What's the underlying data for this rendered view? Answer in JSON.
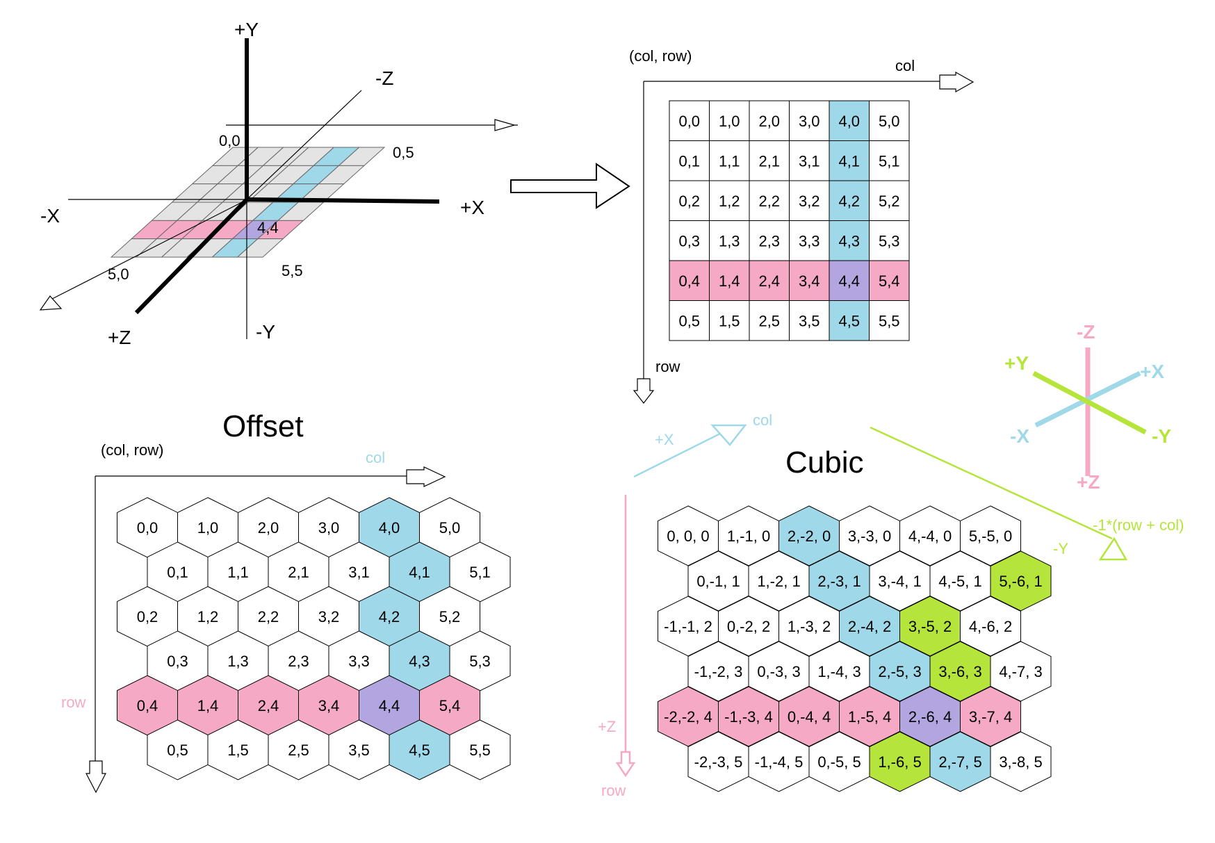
{
  "colors": {
    "blue": "#9fd8e8",
    "pink": "#f5a9c4",
    "purple": "#b3a6e0",
    "green": "#b5e53a",
    "gray": "#e4e4e4",
    "lightblue_line": "#9fd8e8",
    "pink_line": "#f5a9c4",
    "green_line": "#b5e53a"
  },
  "axes3d": {
    "plus_y": "+Y",
    "minus_y": "-Y",
    "plus_x": "+X",
    "minus_x": "-X",
    "plus_z": "+Z",
    "minus_z": "-Z",
    "corner_00": "0,0",
    "corner_05": "0,5",
    "corner_50": "5,0",
    "corner_55": "5,5",
    "center": "4,4"
  },
  "grid": {
    "header": "(col, row)",
    "col_label": "col",
    "row_label": "row",
    "highlight_col": 4,
    "highlight_row": 4,
    "cells": [
      [
        "0,0",
        "1,0",
        "2,0",
        "3,0",
        "4,0",
        "5,0"
      ],
      [
        "0,1",
        "1,1",
        "2,1",
        "3,1",
        "4,1",
        "5,1"
      ],
      [
        "0,2",
        "1,2",
        "2,2",
        "3,2",
        "4,2",
        "5,2"
      ],
      [
        "0,3",
        "1,3",
        "2,3",
        "3,3",
        "4,3",
        "5,3"
      ],
      [
        "0,4",
        "1,4",
        "2,4",
        "3,4",
        "4,4",
        "5,4"
      ],
      [
        "0,5",
        "1,5",
        "2,5",
        "3,5",
        "4,5",
        "5,5"
      ]
    ]
  },
  "offset": {
    "title": "Offset",
    "header": "(col, row)",
    "col_label": "col",
    "row_label": "row",
    "cells": [
      [
        "0,0",
        "1,0",
        "2,0",
        "3,0",
        "4,0",
        "5,0"
      ],
      [
        "0,1",
        "1,1",
        "2,1",
        "3,1",
        "4,1",
        "5,1"
      ],
      [
        "0,2",
        "1,2",
        "2,2",
        "3,2",
        "4,2",
        "5,2"
      ],
      [
        "0,3",
        "1,3",
        "2,3",
        "3,3",
        "4,3",
        "5,3"
      ],
      [
        "0,4",
        "1,4",
        "2,4",
        "3,4",
        "4,4",
        "5,4"
      ],
      [
        "0,5",
        "1,5",
        "2,5",
        "3,5",
        "4,5",
        "5,5"
      ]
    ],
    "fills": [
      [
        "w",
        "w",
        "w",
        "w",
        "b",
        "w"
      ],
      [
        "w",
        "w",
        "w",
        "w",
        "b",
        "w"
      ],
      [
        "w",
        "w",
        "w",
        "w",
        "b",
        "w"
      ],
      [
        "w",
        "w",
        "w",
        "w",
        "b",
        "w"
      ],
      [
        "p",
        "p",
        "p",
        "p",
        "u",
        "p"
      ],
      [
        "w",
        "w",
        "w",
        "w",
        "b",
        "w"
      ]
    ]
  },
  "cubic": {
    "title": "Cubic",
    "col_label": "col",
    "row_label": "row",
    "plus_x": "+X",
    "plus_z": "+Z",
    "minus_y": "-Y",
    "formula": "-1*(row + col)",
    "cells": [
      [
        "0, 0, 0",
        "1,-1, 0",
        "2,-2, 0",
        "3,-3, 0",
        "4,-4, 0",
        "5,-5, 0"
      ],
      [
        "0,-1, 1",
        "1,-2, 1",
        "2,-3, 1",
        "3,-4, 1",
        "4,-5, 1",
        "5,-6, 1"
      ],
      [
        "-1,-1, 2",
        "0,-2, 2",
        "1,-3, 2",
        "2,-4, 2",
        "3,-5, 2",
        "4,-6, 2"
      ],
      [
        "-1,-2, 3",
        "0,-3, 3",
        "1,-4, 3",
        "2,-5, 3",
        "3,-6, 3",
        "4,-7, 3"
      ],
      [
        "-2,-2, 4",
        "-1,-3, 4",
        "0,-4, 4",
        "1,-5, 4",
        "2,-6, 4",
        "3,-7, 4"
      ],
      [
        "-2,-3, 5",
        "-1,-4, 5",
        "0,-5, 5",
        "1,-6, 5",
        "2,-7, 5",
        "3,-8, 5"
      ]
    ],
    "fills": [
      [
        "w",
        "w",
        "b",
        "w",
        "w",
        "w"
      ],
      [
        "w",
        "w",
        "b",
        "w",
        "w",
        "g"
      ],
      [
        "w",
        "w",
        "w",
        "b",
        "g",
        "w"
      ],
      [
        "w",
        "w",
        "w",
        "b",
        "g",
        "w"
      ],
      [
        "p",
        "p",
        "p",
        "p",
        "u",
        "p"
      ],
      [
        "w",
        "w",
        "w",
        "g",
        "b",
        "w"
      ]
    ]
  },
  "compass": {
    "minus_z": "-Z",
    "plus_z": "+Z",
    "plus_y": "+Y",
    "minus_y": "-Y",
    "plus_x": "+X",
    "minus_x": "-X"
  }
}
